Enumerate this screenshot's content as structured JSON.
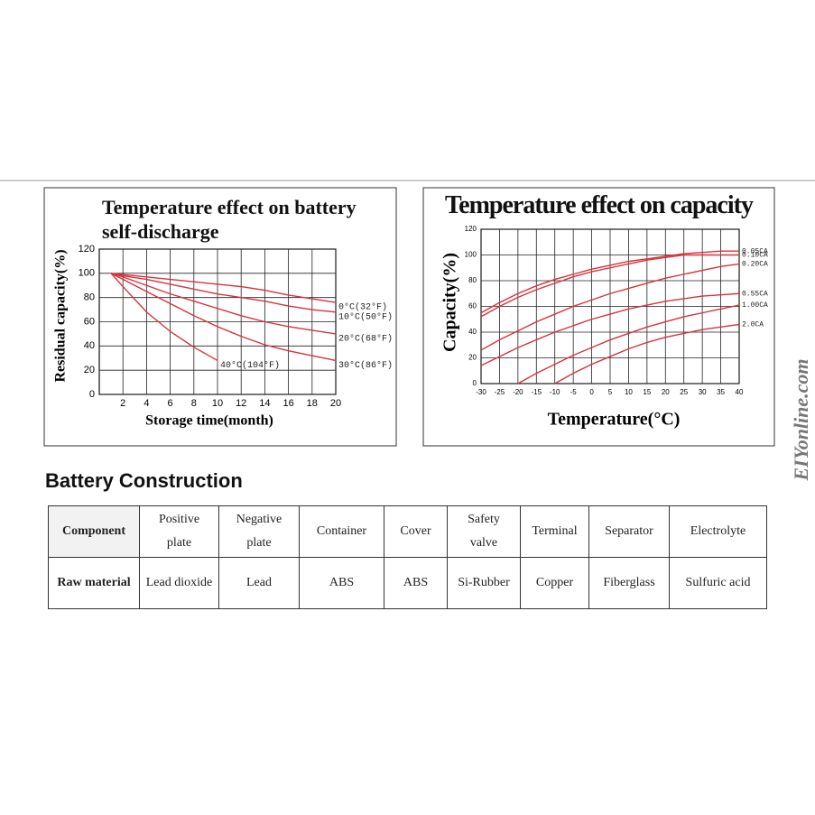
{
  "chart_data": [
    {
      "type": "line",
      "title": "Temperature effect on battery self-discharge",
      "y_label": "Residual capacity(%)",
      "x_label": "Storage time(month)",
      "x": [
        1,
        2,
        4,
        6,
        8,
        10,
        12,
        14,
        16,
        18,
        20
      ],
      "xlim": [
        0,
        20
      ],
      "xticks": [
        2,
        4,
        6,
        8,
        10,
        12,
        14,
        16,
        18,
        20
      ],
      "ylim": [
        0,
        120
      ],
      "yticks": [
        0,
        20,
        40,
        60,
        80,
        100,
        120
      ],
      "grid": true,
      "series": [
        {
          "name": "0°C(32°F)",
          "color": "#d8323c",
          "values": [
            100,
            99,
            97,
            95,
            93,
            91,
            89,
            86,
            82,
            79,
            76
          ]
        },
        {
          "name": "10°C(50°F)",
          "color": "#d8323c",
          "values": [
            100,
            98,
            95,
            91,
            87,
            83,
            80,
            77,
            73,
            70,
            68
          ]
        },
        {
          "name": "20°C(68°F)",
          "color": "#d8323c",
          "values": [
            100,
            97,
            90,
            83,
            77,
            71,
            65,
            60,
            56,
            53,
            50
          ]
        },
        {
          "name": "30°C(86°F)",
          "color": "#d8323c",
          "values": [
            100,
            95,
            85,
            75,
            65,
            56,
            48,
            41,
            36,
            32,
            28
          ]
        },
        {
          "name": "40°C(104°F)",
          "color": "#d8323c",
          "values": [
            100,
            89,
            68,
            52,
            39,
            28,
            null,
            null,
            null,
            null,
            null
          ]
        }
      ]
    },
    {
      "type": "line",
      "title": "Temperature effect on capacity",
      "y_label": "Capacity(%)",
      "x_label": "Temperature(°C)",
      "x": [
        -30,
        -25,
        -20,
        -15,
        -10,
        -5,
        0,
        5,
        10,
        15,
        20,
        25,
        30,
        35,
        40
      ],
      "xlim": [
        -30,
        40
      ],
      "xticks": [
        -30,
        -25,
        -20,
        -15,
        -10,
        -5,
        0,
        5,
        10,
        15,
        20,
        25,
        30,
        35,
        40
      ],
      "ylim": [
        0,
        120
      ],
      "yticks": [
        0,
        20,
        40,
        60,
        80,
        100,
        120
      ],
      "grid": true,
      "series": [
        {
          "name": "0.05CA",
          "color": "#d8323c",
          "values": [
            55,
            63,
            70,
            76,
            81,
            85,
            89,
            92,
            95,
            97,
            99,
            101,
            102,
            103,
            103
          ]
        },
        {
          "name": "0.10CA",
          "color": "#d8323c",
          "values": [
            52,
            60,
            67,
            73,
            78,
            83,
            87,
            90,
            93,
            96,
            98,
            100,
            100,
            100,
            100
          ]
        },
        {
          "name": "0.20CA",
          "color": "#d8323c",
          "values": [
            26,
            34,
            41,
            48,
            54,
            60,
            65,
            70,
            74,
            78,
            82,
            85,
            88,
            91,
            93
          ]
        },
        {
          "name": "0.55CA",
          "color": "#d8323c",
          "values": [
            14,
            21,
            28,
            34,
            40,
            45,
            50,
            54,
            58,
            61,
            64,
            66,
            68,
            69,
            70
          ]
        },
        {
          "name": "1.00CA",
          "color": "#d8323c",
          "values": [
            null,
            null,
            0,
            8,
            15,
            22,
            28,
            34,
            39,
            44,
            48,
            52,
            55,
            58,
            61
          ]
        },
        {
          "name": "2.0CA",
          "color": "#d8323c",
          "values": [
            null,
            null,
            null,
            null,
            0,
            8,
            15,
            21,
            27,
            32,
            36,
            39,
            42,
            44,
            46
          ]
        }
      ]
    }
  ],
  "heading": "Battery Construction",
  "table": {
    "rows": [
      [
        "Component",
        "Positive plate",
        "Negative plate",
        "Container",
        "Cover",
        "Safety valve",
        "Terminal",
        "Separator",
        "Electrolyte"
      ],
      [
        "Raw material",
        "Lead dioxide",
        "Lead",
        "ABS",
        "ABS",
        "Si-Rubber",
        "Copper",
        "Fiberglass",
        "Sulfuric acid"
      ]
    ]
  },
  "watermark": "EIYonline.com"
}
